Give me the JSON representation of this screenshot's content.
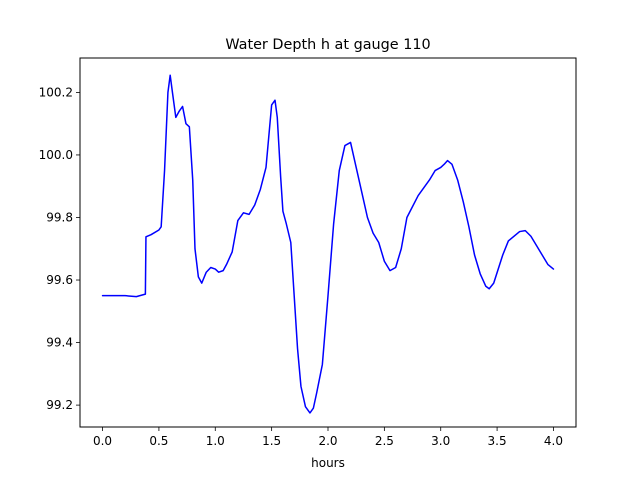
{
  "chart_data": {
    "type": "line",
    "title": "Water Depth h at gauge 110",
    "xlabel": "hours",
    "ylabel": "",
    "xlim": [
      -0.2,
      4.2
    ],
    "ylim": [
      99.13,
      100.31
    ],
    "xticks": [
      0.0,
      0.5,
      1.0,
      1.5,
      2.0,
      2.5,
      3.0,
      3.5,
      4.0
    ],
    "xtick_labels": [
      "0.0",
      "0.5",
      "1.0",
      "1.5",
      "2.0",
      "2.5",
      "3.0",
      "3.5",
      "4.0"
    ],
    "yticks": [
      99.2,
      99.4,
      99.6,
      99.8,
      100.0,
      100.2
    ],
    "ytick_labels": [
      "99.2",
      "99.4",
      "99.6",
      "99.8",
      "100.0",
      "100.2"
    ],
    "grid": false,
    "legend": "none",
    "series": [
      {
        "color": "#0000ff",
        "x": [
          0.0,
          0.1,
          0.2,
          0.3,
          0.38,
          0.385,
          0.43,
          0.5,
          0.52,
          0.55,
          0.58,
          0.6,
          0.62,
          0.65,
          0.68,
          0.71,
          0.74,
          0.77,
          0.8,
          0.82,
          0.85,
          0.88,
          0.92,
          0.96,
          1.0,
          1.03,
          1.07,
          1.1,
          1.15,
          1.2,
          1.25,
          1.3,
          1.35,
          1.4,
          1.45,
          1.48,
          1.5,
          1.53,
          1.55,
          1.58,
          1.6,
          1.63,
          1.67,
          1.7,
          1.73,
          1.76,
          1.8,
          1.84,
          1.87,
          1.9,
          1.95,
          2.0,
          2.05,
          2.1,
          2.15,
          2.2,
          2.25,
          2.3,
          2.35,
          2.4,
          2.45,
          2.5,
          2.55,
          2.6,
          2.65,
          2.7,
          2.8,
          2.9,
          2.95,
          3.0,
          3.03,
          3.06,
          3.1,
          3.15,
          3.2,
          3.25,
          3.3,
          3.35,
          3.4,
          3.43,
          3.47,
          3.55,
          3.6,
          3.7,
          3.75,
          3.8,
          3.85,
          3.9,
          3.95,
          4.0
        ],
        "y": [
          99.55,
          99.55,
          99.55,
          99.547,
          99.555,
          99.738,
          99.745,
          99.76,
          99.77,
          99.95,
          100.2,
          100.255,
          100.2,
          100.12,
          100.14,
          100.155,
          100.1,
          100.09,
          99.92,
          99.7,
          99.61,
          99.59,
          99.625,
          99.64,
          99.635,
          99.625,
          99.63,
          99.65,
          99.69,
          99.79,
          99.815,
          99.81,
          99.84,
          99.89,
          99.96,
          100.08,
          100.16,
          100.175,
          100.12,
          99.93,
          99.82,
          99.78,
          99.72,
          99.55,
          99.38,
          99.26,
          99.195,
          99.175,
          99.19,
          99.24,
          99.33,
          99.55,
          99.78,
          99.95,
          100.03,
          100.04,
          99.96,
          99.88,
          99.8,
          99.75,
          99.72,
          99.66,
          99.63,
          99.64,
          99.7,
          99.8,
          99.87,
          99.92,
          99.95,
          99.96,
          99.97,
          99.982,
          99.97,
          99.92,
          99.85,
          99.77,
          99.68,
          99.62,
          99.58,
          99.572,
          99.59,
          99.68,
          99.725,
          99.755,
          99.758,
          99.74,
          99.71,
          99.68,
          99.65,
          99.635
        ]
      }
    ]
  }
}
